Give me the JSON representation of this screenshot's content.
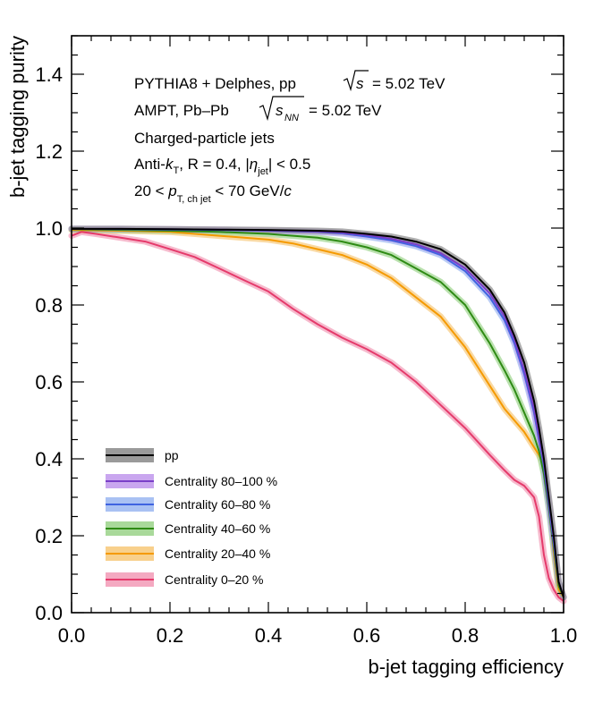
{
  "chart_data": {
    "type": "line",
    "xlabel": "b-jet tagging efficiency",
    "ylabel": "b-jet tagging purity",
    "xlim": [
      0,
      1
    ],
    "ylim": [
      0,
      1.5
    ],
    "x_ticks": [
      "0.0",
      "0.2",
      "0.4",
      "0.6",
      "0.8",
      "1.0"
    ],
    "y_ticks": [
      "0.0",
      "0.2",
      "0.4",
      "0.6",
      "0.8",
      "1.0",
      "1.2",
      "1.4"
    ],
    "grid": false,
    "legend_position": "bottom-left",
    "annotations": {
      "line1": {
        "gen": "PYTHIA8 + Delphes, pp",
        "energy_pre": "= 5.02 TeV"
      },
      "line2": {
        "gen": "AMPT, Pb–Pb",
        "energy_sub": "NN",
        "energy_post": "= 5.02 TeV"
      },
      "line3": "Charged-particle jets",
      "line4": {
        "algo": "Anti-",
        "k": "k",
        "ksub": "T",
        "radius": ",   R = 0.4, |",
        "eta": "η",
        "etasub": "jet",
        "etapost": "| < 0.5"
      },
      "line5": {
        "pre": "20 <  ",
        "p": "p",
        "psub": "T, ch jet",
        "post": " < 70 GeV/",
        "c": "c"
      }
    },
    "series": [
      {
        "name": "pp",
        "color": "#000000",
        "band_color": "#9a9a9a",
        "x": [
          0.0,
          0.1,
          0.2,
          0.3,
          0.4,
          0.5,
          0.55,
          0.6,
          0.65,
          0.7,
          0.75,
          0.8,
          0.85,
          0.88,
          0.9,
          0.92,
          0.94,
          0.95,
          0.96,
          0.97,
          0.98,
          0.99,
          1.0
        ],
        "y": [
          0.998,
          0.998,
          0.997,
          0.996,
          0.995,
          0.993,
          0.991,
          0.985,
          0.978,
          0.965,
          0.945,
          0.905,
          0.84,
          0.78,
          0.72,
          0.65,
          0.55,
          0.48,
          0.4,
          0.3,
          0.2,
          0.08,
          0.04
        ]
      },
      {
        "name": "Centrality 80–100 %",
        "color": "#7a3fc8",
        "band_color": "#c9a6ef",
        "x": [
          0.0,
          0.1,
          0.2,
          0.3,
          0.4,
          0.5,
          0.55,
          0.6,
          0.65,
          0.7,
          0.75,
          0.8,
          0.85,
          0.88,
          0.9,
          0.92,
          0.94,
          0.95,
          0.96,
          0.97,
          0.98,
          0.99,
          1.0
        ],
        "y": [
          0.998,
          0.998,
          0.997,
          0.996,
          0.994,
          0.991,
          0.988,
          0.982,
          0.972,
          0.958,
          0.935,
          0.895,
          0.83,
          0.77,
          0.71,
          0.63,
          0.53,
          0.46,
          0.39,
          0.29,
          0.19,
          0.08,
          0.04
        ]
      },
      {
        "name": "Centrality 60–80 %",
        "color": "#3f63e0",
        "band_color": "#a9c1f3",
        "x": [
          0.0,
          0.1,
          0.2,
          0.3,
          0.4,
          0.5,
          0.55,
          0.6,
          0.65,
          0.7,
          0.75,
          0.8,
          0.85,
          0.88,
          0.9,
          0.92,
          0.94,
          0.95,
          0.96,
          0.97,
          0.98,
          0.99,
          1.0
        ],
        "y": [
          0.998,
          0.997,
          0.996,
          0.995,
          0.993,
          0.99,
          0.986,
          0.978,
          0.968,
          0.953,
          0.93,
          0.888,
          0.82,
          0.76,
          0.7,
          0.62,
          0.52,
          0.45,
          0.38,
          0.28,
          0.18,
          0.08,
          0.04
        ]
      },
      {
        "name": "Centrality 40–60 %",
        "color": "#2e8b14",
        "band_color": "#a9d99a",
        "x": [
          0.0,
          0.1,
          0.2,
          0.3,
          0.4,
          0.5,
          0.55,
          0.6,
          0.65,
          0.7,
          0.75,
          0.8,
          0.85,
          0.88,
          0.9,
          0.92,
          0.94,
          0.95,
          0.96,
          0.97,
          0.98,
          0.99,
          1.0
        ],
        "y": [
          0.997,
          0.995,
          0.993,
          0.99,
          0.985,
          0.975,
          0.965,
          0.95,
          0.93,
          0.895,
          0.86,
          0.8,
          0.7,
          0.63,
          0.58,
          0.52,
          0.46,
          0.42,
          0.36,
          0.27,
          0.17,
          0.07,
          0.04
        ]
      },
      {
        "name": "Centrality 20–40 %",
        "color": "#f59a00",
        "band_color": "#f8d08c",
        "x": [
          0.0,
          0.1,
          0.2,
          0.3,
          0.4,
          0.45,
          0.5,
          0.55,
          0.6,
          0.65,
          0.7,
          0.75,
          0.8,
          0.85,
          0.88,
          0.9,
          0.92,
          0.94,
          0.95,
          0.96,
          0.97,
          0.98,
          0.99,
          1.0
        ],
        "y": [
          0.995,
          0.993,
          0.99,
          0.98,
          0.97,
          0.96,
          0.945,
          0.93,
          0.905,
          0.87,
          0.82,
          0.77,
          0.69,
          0.59,
          0.53,
          0.5,
          0.47,
          0.43,
          0.41,
          0.38,
          0.29,
          0.16,
          0.06,
          0.04
        ]
      },
      {
        "name": "Centrality 0–20 %",
        "color": "#e53a6b",
        "band_color": "#f4a9c1",
        "x": [
          0.0,
          0.02,
          0.05,
          0.1,
          0.15,
          0.2,
          0.25,
          0.3,
          0.35,
          0.4,
          0.45,
          0.5,
          0.55,
          0.6,
          0.65,
          0.7,
          0.75,
          0.8,
          0.85,
          0.88,
          0.9,
          0.92,
          0.94,
          0.95,
          0.96,
          0.97,
          0.98,
          0.99,
          1.0
        ],
        "y": [
          0.98,
          0.99,
          0.985,
          0.975,
          0.965,
          0.945,
          0.925,
          0.895,
          0.865,
          0.835,
          0.79,
          0.75,
          0.715,
          0.685,
          0.65,
          0.6,
          0.54,
          0.48,
          0.41,
          0.37,
          0.345,
          0.33,
          0.3,
          0.25,
          0.15,
          0.09,
          0.06,
          0.04,
          0.03
        ]
      }
    ]
  }
}
